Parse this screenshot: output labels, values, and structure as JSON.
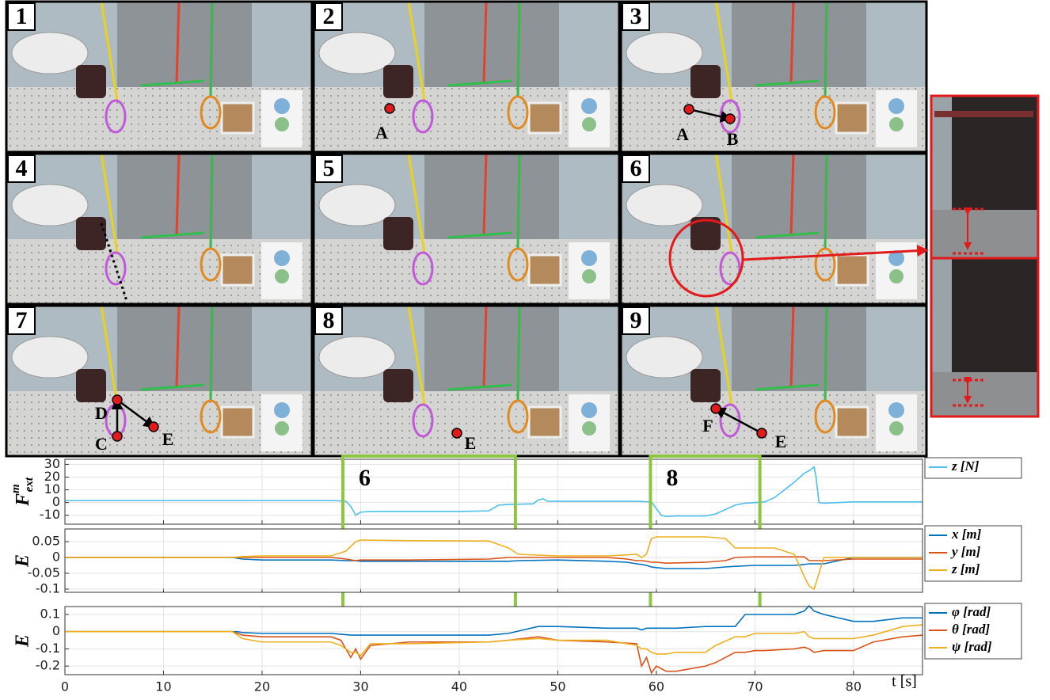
{
  "figure_panels": [
    {
      "number": "1",
      "points": []
    },
    {
      "number": "2",
      "points": [
        {
          "label": "A"
        }
      ]
    },
    {
      "number": "3",
      "points": [
        {
          "label": "A"
        },
        {
          "label": "B"
        }
      ]
    },
    {
      "number": "4",
      "points": []
    },
    {
      "number": "5",
      "points": []
    },
    {
      "number": "6",
      "points": []
    },
    {
      "number": "7",
      "points": [
        {
          "label": "D"
        },
        {
          "label": "C"
        },
        {
          "label": "E"
        }
      ]
    },
    {
      "number": "8",
      "points": [
        {
          "label": "E"
        }
      ]
    },
    {
      "number": "9",
      "points": [
        {
          "label": "F"
        },
        {
          "label": "E"
        }
      ]
    }
  ],
  "chart_data": [
    {
      "type": "line",
      "ylabel": {
        "text": "F",
        "superscript": "m",
        "subscript": "ext"
      },
      "xlim": [
        0,
        87
      ],
      "xticks": [
        0,
        10,
        20,
        30,
        40,
        50,
        60,
        70,
        80
      ],
      "ylim": [
        -17,
        34
      ],
      "yticks": [
        30,
        20,
        10,
        0,
        -10
      ],
      "grid": true,
      "highlights": [
        {
          "label": "6",
          "xrange": [
            28.2,
            45.7
          ]
        },
        {
          "label": "8",
          "xrange": [
            59.4,
            70.5
          ]
        }
      ],
      "x": [
        0,
        17,
        27.5,
        28.5,
        29,
        29.5,
        30,
        31,
        35,
        40,
        43,
        44,
        45,
        47.5,
        48,
        48.5,
        49,
        50,
        55,
        58,
        59.5,
        60.5,
        61,
        62,
        65,
        66,
        68,
        69,
        70,
        71,
        72,
        73,
        74,
        75,
        75.5,
        76,
        76.2,
        76.5,
        77,
        80,
        87
      ],
      "series": [
        {
          "name": "z [N]",
          "color": "#4DBEEE",
          "values": [
            1.5,
            1.5,
            1.5,
            1,
            -3,
            -10,
            -7.5,
            -7,
            -7,
            -7,
            -6.5,
            -2,
            -1.5,
            -1,
            2,
            3,
            1,
            1,
            1,
            1,
            0.5,
            -10,
            -11,
            -10.5,
            -10.5,
            -9,
            -2,
            -0.5,
            0,
            0.5,
            4,
            10,
            16,
            23,
            25,
            28,
            20,
            0,
            -0.5,
            0.5,
            0.5
          ]
        }
      ]
    },
    {
      "type": "line",
      "ylabel": "E",
      "xlim": [
        0,
        87
      ],
      "xticks": [
        0,
        10,
        20,
        30,
        40,
        50,
        60,
        70,
        80
      ],
      "ylim": [
        -0.11,
        0.09
      ],
      "yticks": [
        0.05,
        0,
        -0.05,
        -0.1
      ],
      "grid": true,
      "x": [
        0,
        17,
        18,
        20,
        27,
        28.5,
        29.5,
        30,
        35,
        43,
        45,
        46,
        50,
        55,
        57,
        58,
        58.5,
        59,
        59.5,
        60,
        61,
        65,
        67,
        68,
        70,
        72,
        74,
        75,
        75.5,
        76,
        77,
        80,
        87
      ],
      "series": [
        {
          "name": "x [m]",
          "color": "#0072BD",
          "values": [
            0,
            0,
            -0.005,
            -0.008,
            -0.008,
            -0.01,
            -0.01,
            -0.012,
            -0.012,
            -0.012,
            -0.012,
            -0.01,
            -0.008,
            -0.012,
            -0.015,
            -0.02,
            -0.022,
            -0.025,
            -0.03,
            -0.032,
            -0.035,
            -0.035,
            -0.03,
            -0.028,
            -0.025,
            -0.025,
            -0.025,
            -0.022,
            -0.02,
            -0.02,
            -0.02,
            0,
            0
          ]
        },
        {
          "name": "y [m]",
          "color": "#D95319",
          "values": [
            0,
            0,
            0,
            0,
            0,
            -0.005,
            -0.01,
            -0.008,
            -0.008,
            -0.005,
            0,
            0,
            0,
            0,
            -0.005,
            -0.01,
            -0.01,
            -0.012,
            -0.015,
            -0.015,
            -0.018,
            -0.015,
            -0.01,
            0,
            0.002,
            0.002,
            0.002,
            0.002,
            -0.01,
            -0.01,
            -0.01,
            -0.005,
            -0.005
          ]
        },
        {
          "name": "z [m]",
          "color": "#EDB120",
          "values": [
            0,
            0,
            0.003,
            0.005,
            0.005,
            0.02,
            0.05,
            0.055,
            0.053,
            0.052,
            0.03,
            0.01,
            0.005,
            0.005,
            0.008,
            0.01,
            0,
            0.01,
            0.06,
            0.065,
            0.065,
            0.065,
            0.06,
            0.03,
            0.03,
            0.03,
            0.01,
            -0.06,
            -0.09,
            -0.1,
            0,
            0,
            0
          ]
        }
      ]
    },
    {
      "type": "line",
      "ylabel": "E",
      "xlabel": "t [s]",
      "xlim": [
        0,
        87
      ],
      "xticks": [
        0,
        10,
        20,
        30,
        40,
        50,
        60,
        70,
        80
      ],
      "ylim": [
        -0.25,
        0.146
      ],
      "yticks": [
        0.1,
        0,
        -0.1,
        -0.2
      ],
      "grid": true,
      "x": [
        0,
        17,
        17.5,
        18,
        20,
        27,
        28,
        29,
        29.5,
        30,
        31,
        35,
        43,
        45,
        48,
        50,
        55,
        58,
        58.5,
        59,
        59.5,
        60,
        61,
        62,
        65,
        66,
        68,
        69,
        70,
        71,
        74,
        75,
        75.5,
        76,
        77,
        80,
        82,
        85,
        87
      ],
      "series": [
        {
          "name": "φ [rad]",
          "color": "#0072BD",
          "values": [
            0,
            0,
            0,
            -0.005,
            -0.01,
            -0.01,
            -0.015,
            -0.02,
            -0.02,
            -0.02,
            -0.02,
            -0.02,
            -0.02,
            -0.01,
            0.03,
            0.03,
            0.02,
            0.02,
            0.01,
            0.02,
            0.02,
            0.02,
            0.02,
            0.02,
            0.03,
            0.03,
            0.03,
            0.1,
            0.1,
            0.1,
            0.1,
            0.12,
            0.15,
            0.12,
            0.1,
            0.06,
            0.06,
            0.08,
            0.08
          ]
        },
        {
          "name": "θ [rad]",
          "color": "#D95319",
          "values": [
            0,
            0,
            -0.01,
            -0.02,
            -0.03,
            -0.03,
            -0.05,
            -0.15,
            -0.1,
            -0.16,
            -0.08,
            -0.06,
            -0.06,
            -0.05,
            -0.03,
            -0.05,
            -0.06,
            -0.07,
            -0.2,
            -0.15,
            -0.24,
            -0.2,
            -0.23,
            -0.23,
            -0.2,
            -0.18,
            -0.12,
            -0.12,
            -0.11,
            -0.11,
            -0.1,
            -0.09,
            -0.1,
            -0.12,
            -0.11,
            -0.11,
            -0.06,
            -0.03,
            -0.02
          ]
        },
        {
          "name": "ψ [rad]",
          "color": "#EDB120",
          "values": [
            0,
            0,
            -0.02,
            -0.04,
            -0.06,
            -0.06,
            -0.08,
            -0.12,
            -0.12,
            -0.14,
            -0.07,
            -0.07,
            -0.06,
            -0.05,
            -0.04,
            -0.05,
            -0.05,
            -0.08,
            -0.1,
            -0.1,
            -0.12,
            -0.13,
            -0.13,
            -0.12,
            -0.12,
            -0.08,
            -0.03,
            -0.03,
            -0.01,
            -0.01,
            -0.01,
            0,
            -0.03,
            -0.04,
            -0.04,
            -0.04,
            -0.02,
            0.03,
            0.04
          ]
        }
      ]
    }
  ]
}
